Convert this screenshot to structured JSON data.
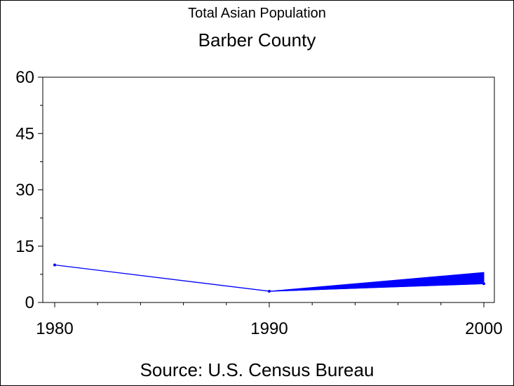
{
  "title": "Total Asian Population",
  "subtitle": "Barber County",
  "source": "Source: U.S. Census Bureau",
  "chart_data": {
    "type": "line",
    "x": [
      1980,
      1990,
      2000
    ],
    "x_tick_labels": [
      "1980",
      "1990",
      "2000"
    ],
    "y_tick_labels": [
      "0",
      "15",
      "30",
      "45",
      "60"
    ],
    "ylim": [
      0,
      60
    ],
    "xlim": [
      1980,
      2000
    ],
    "series": [
      {
        "values": [
          10,
          3,
          5
        ],
        "color": "#0000ff"
      }
    ],
    "band_2000": [
      5,
      8
    ],
    "grid": false
  }
}
